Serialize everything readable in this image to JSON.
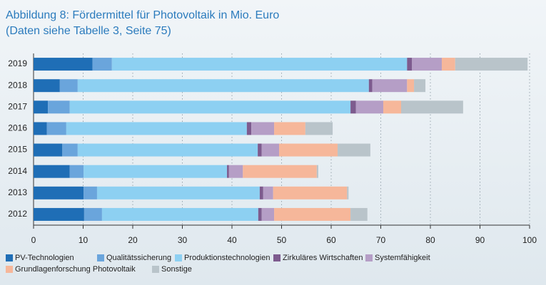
{
  "chart_data": {
    "type": "stacked-barh",
    "title": "Abbildung 8: Fördermittel für Photovoltaik in Mio. Euro",
    "subtitle": "(Daten siehe Tabelle 3, Seite 75)",
    "categories": [
      "2019",
      "2018",
      "2017",
      "2016",
      "2015",
      "2014",
      "2013",
      "2012"
    ],
    "series": [
      {
        "name": "PV-Technologien",
        "color": "#1f6eb6",
        "values": [
          11.9,
          5.3,
          2.9,
          2.7,
          5.8,
          7.3,
          10.1,
          10.2
        ]
      },
      {
        "name": "Qualitätssicherung",
        "color": "#6aa5dc",
        "values": [
          3.9,
          3.6,
          4.4,
          3.9,
          3.1,
          2.8,
          2.7,
          3.6
        ]
      },
      {
        "name": "Produktionstechnologien",
        "color": "#8dd0f2",
        "values": [
          59.5,
          58.7,
          56.6,
          36.4,
          36.3,
          28.9,
          32.8,
          31.5
        ]
      },
      {
        "name": "Zirkuläres Wirtschaften",
        "color": "#7d5b8e",
        "values": [
          1.0,
          0.7,
          1.1,
          0.9,
          0.8,
          0.4,
          0.7,
          0.7
        ]
      },
      {
        "name": "Systemfähigkeit",
        "color": "#b59ec6",
        "values": [
          6.0,
          7.0,
          5.5,
          4.6,
          3.5,
          2.8,
          2.0,
          2.5
        ]
      },
      {
        "name": "Grundlagenforschung Photovoltaik",
        "color": "#f6b79a",
        "values": [
          2.7,
          1.4,
          3.6,
          6.3,
          11.8,
          14.9,
          14.9,
          15.4
        ]
      },
      {
        "name": "Sonstige",
        "color": "#b9c4ca",
        "values": [
          14.6,
          2.3,
          12.5,
          5.5,
          6.6,
          0.3,
          0.3,
          3.4
        ]
      }
    ],
    "xlim": [
      0,
      100
    ],
    "xticks": [
      0,
      10,
      20,
      30,
      40,
      50,
      60,
      70,
      80,
      90,
      100
    ],
    "grid": true
  }
}
